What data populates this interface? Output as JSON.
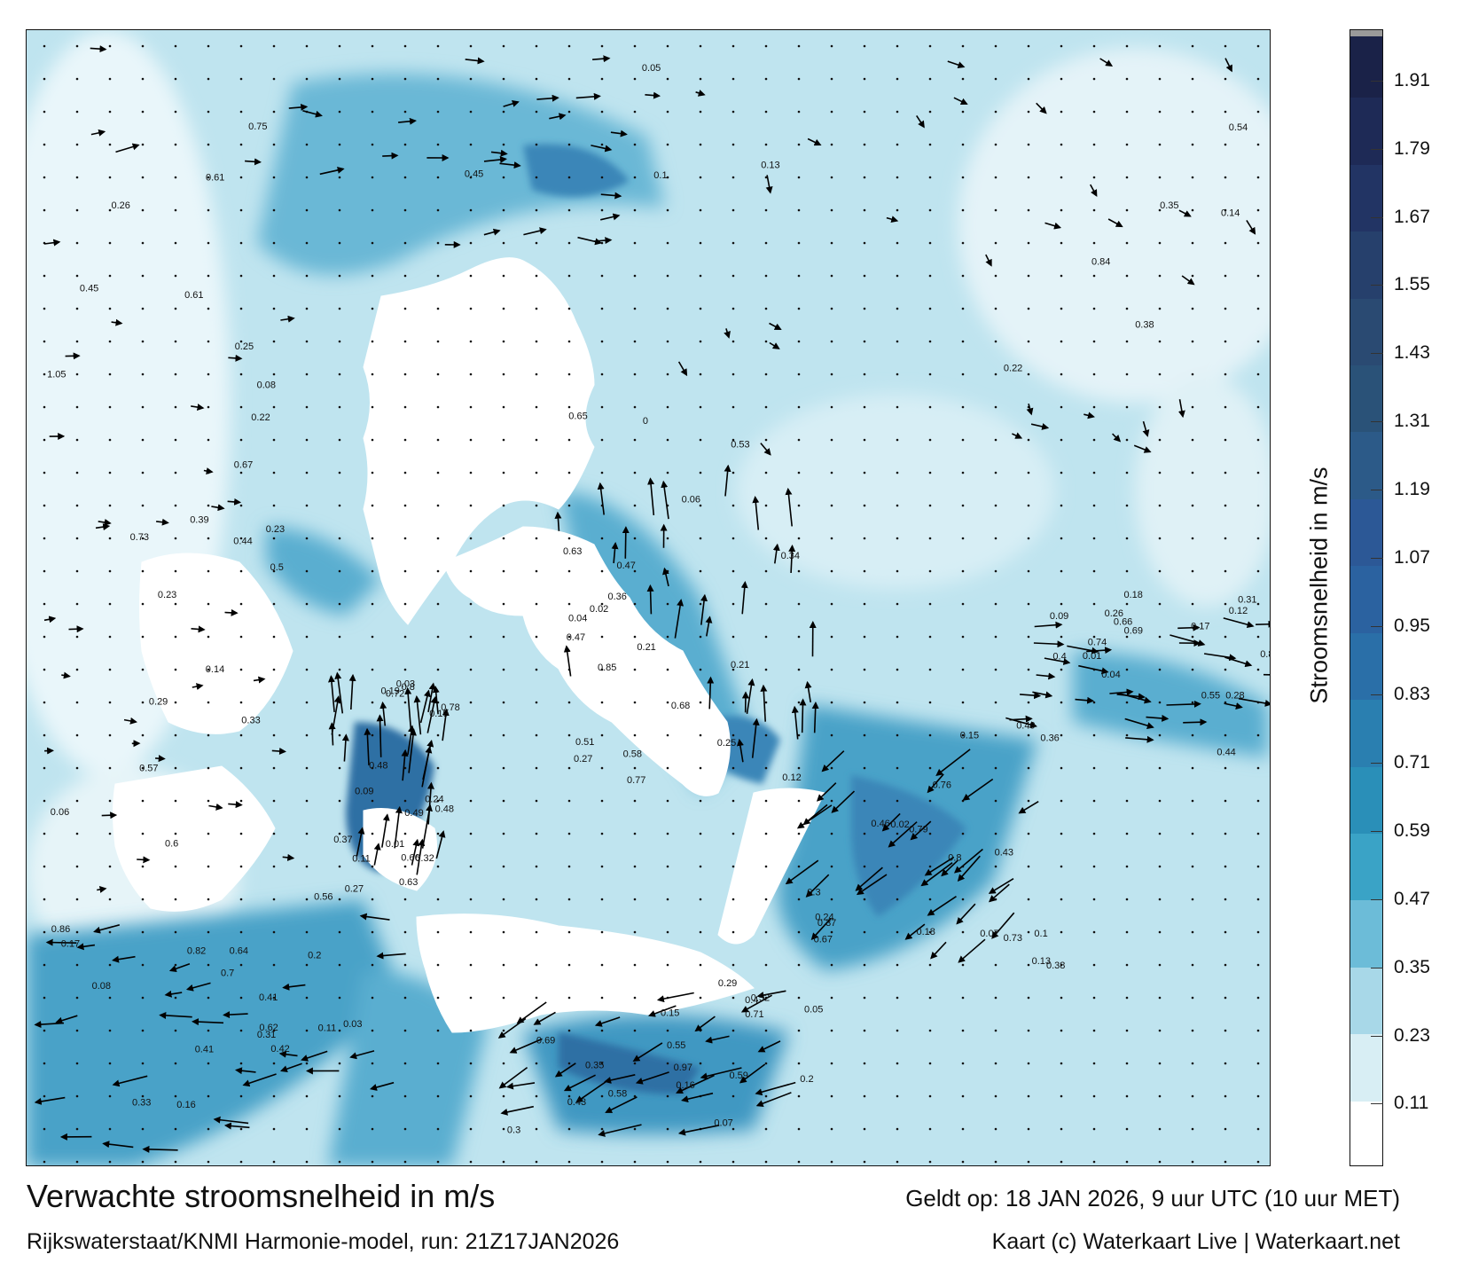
{
  "title": "Verwachte stroomsnelheid in m/s",
  "subtitle": "Rijkswaterstaat/KNMI Harmonie-model, run: 21Z17JAN2026",
  "valid_time": "Geldt op: 18 JAN 2026, 9 uur UTC (10 uur MET)",
  "credit": "Kaart (c) Waterkaart Live | Waterkaart.net",
  "colorbar": {
    "label": "Stroomsnelheid in m/s",
    "ticks": [
      "1.91",
      "1.79",
      "1.67",
      "1.55",
      "1.43",
      "1.31",
      "1.19",
      "1.07",
      "0.95",
      "0.83",
      "0.71",
      "0.59",
      "0.47",
      "0.35",
      "0.23",
      "0.11"
    ],
    "min": 0.0,
    "max": 2.0,
    "colors": [
      "#ffffff",
      "#d8eef4",
      "#a8d8e8",
      "#6cbcd8",
      "#3aa3c6",
      "#2a8fb8",
      "#2a7fb0",
      "#2a6fa8",
      "#2b62a0",
      "#2c5896",
      "#2c5a88",
      "#2a5278",
      "#2a4a72",
      "#26406c",
      "#223464",
      "#1e2a56",
      "#1a2248"
    ]
  },
  "map_labels": [
    {
      "text": "0.25"
    },
    {
      "text": "0.21"
    },
    {
      "text": "0.19"
    },
    {
      "text": "0.15"
    },
    {
      "text": "0.18"
    },
    {
      "text": "0.17"
    },
    {
      "text": "0.16"
    },
    {
      "text": "0.22"
    },
    {
      "text": "0.26"
    },
    {
      "text": "0.27"
    },
    {
      "text": "0.24"
    },
    {
      "text": "0.13"
    },
    {
      "text": "0.12"
    },
    {
      "text": "0.11"
    },
    {
      "text": "0.05"
    },
    {
      "text": "0.08"
    },
    {
      "text": "0.14"
    },
    {
      "text": "0.06"
    },
    {
      "text": "0.09"
    },
    {
      "text": "0.07"
    },
    {
      "text": "0.04"
    },
    {
      "text": "0.03"
    },
    {
      "text": "0.2"
    },
    {
      "text": "0.23"
    },
    {
      "text": "0.45"
    },
    {
      "text": "0.47"
    },
    {
      "text": "0.48"
    },
    {
      "text": "0.43"
    },
    {
      "text": "0.31"
    },
    {
      "text": "0.33"
    },
    {
      "text": "0.35"
    },
    {
      "text": "0.29"
    },
    {
      "text": "0.1"
    },
    {
      "text": "0.02"
    },
    {
      "text": "0.01"
    },
    {
      "text": "0.37"
    },
    {
      "text": "0.36"
    },
    {
      "text": "0.41"
    },
    {
      "text": "0.55"
    },
    {
      "text": "0.61"
    },
    {
      "text": "0.65"
    },
    {
      "text": "0.68"
    },
    {
      "text": "0.72"
    },
    {
      "text": "0.79"
    },
    {
      "text": "0.81"
    },
    {
      "text": "0.82"
    },
    {
      "text": "0.69"
    },
    {
      "text": "0.67"
    },
    {
      "text": "0.54"
    },
    {
      "text": "0.58"
    },
    {
      "text": "0.63"
    },
    {
      "text": "0.73"
    },
    {
      "text": "0.66"
    },
    {
      "text": "0.64"
    },
    {
      "text": "0.59"
    },
    {
      "text": "0.57"
    },
    {
      "text": "0.53"
    },
    {
      "text": "0.51"
    },
    {
      "text": "0.49"
    },
    {
      "text": "0.46"
    },
    {
      "text": "0.44"
    },
    {
      "text": "0.42"
    },
    {
      "text": "0.4"
    },
    {
      "text": "0.39"
    },
    {
      "text": "0.38"
    },
    {
      "text": "0.34"
    },
    {
      "text": "0.32"
    },
    {
      "text": "0.3"
    },
    {
      "text": "0.28"
    },
    {
      "text": "0.86"
    },
    {
      "text": "0.97"
    },
    {
      "text": "1.05"
    },
    {
      "text": "0.84"
    },
    {
      "text": "0.85"
    },
    {
      "text": "0.8"
    },
    {
      "text": "0.76"
    },
    {
      "text": "0.74"
    },
    {
      "text": "0.62"
    },
    {
      "text": "0.52"
    },
    {
      "text": "0.5"
    },
    {
      "text": "0"
    },
    {
      "text": "0.25"
    },
    {
      "text": "0.27"
    },
    {
      "text": "0.24"
    },
    {
      "text": "0.26"
    },
    {
      "text": "0.31"
    },
    {
      "text": "0.29"
    },
    {
      "text": "0.23"
    },
    {
      "text": "0.22"
    },
    {
      "text": "0.21"
    },
    {
      "text": "0.19"
    },
    {
      "text": "0.18"
    },
    {
      "text": "0.17"
    },
    {
      "text": "0.16"
    },
    {
      "text": "0.15"
    },
    {
      "text": "0.14"
    },
    {
      "text": "0.13"
    },
    {
      "text": "0.12"
    },
    {
      "text": "0.11"
    },
    {
      "text": "0.1"
    },
    {
      "text": "0.09"
    },
    {
      "text": "0.08"
    },
    {
      "text": "0.07"
    },
    {
      "text": "0.06"
    },
    {
      "text": "0.05"
    },
    {
      "text": "0.04"
    },
    {
      "text": "0.03"
    },
    {
      "text": "0.02"
    },
    {
      "text": "0.01"
    },
    {
      "text": "0.2"
    },
    {
      "text": "0.3"
    },
    {
      "text": "0.33"
    },
    {
      "text": "0.35"
    },
    {
      "text": "0.36"
    },
    {
      "text": "0.37"
    },
    {
      "text": "0.38"
    },
    {
      "text": "0.4"
    },
    {
      "text": "0.41"
    },
    {
      "text": "0.43"
    },
    {
      "text": "0.44"
    },
    {
      "text": "0.45"
    },
    {
      "text": "0.47"
    },
    {
      "text": "0.48"
    },
    {
      "text": "0.49"
    },
    {
      "text": "0.55"
    },
    {
      "text": "0.56"
    },
    {
      "text": "0.58"
    },
    {
      "text": "0.6"
    },
    {
      "text": "0.61"
    },
    {
      "text": "0.63"
    },
    {
      "text": "0.66"
    },
    {
      "text": "0.67"
    },
    {
      "text": "0.69"
    },
    {
      "text": "0.7"
    },
    {
      "text": "0.71"
    },
    {
      "text": "0.73"
    },
    {
      "text": "0.75"
    },
    {
      "text": "0.77"
    },
    {
      "text": "0.78"
    },
    {
      "text": "0.8"
    }
  ]
}
